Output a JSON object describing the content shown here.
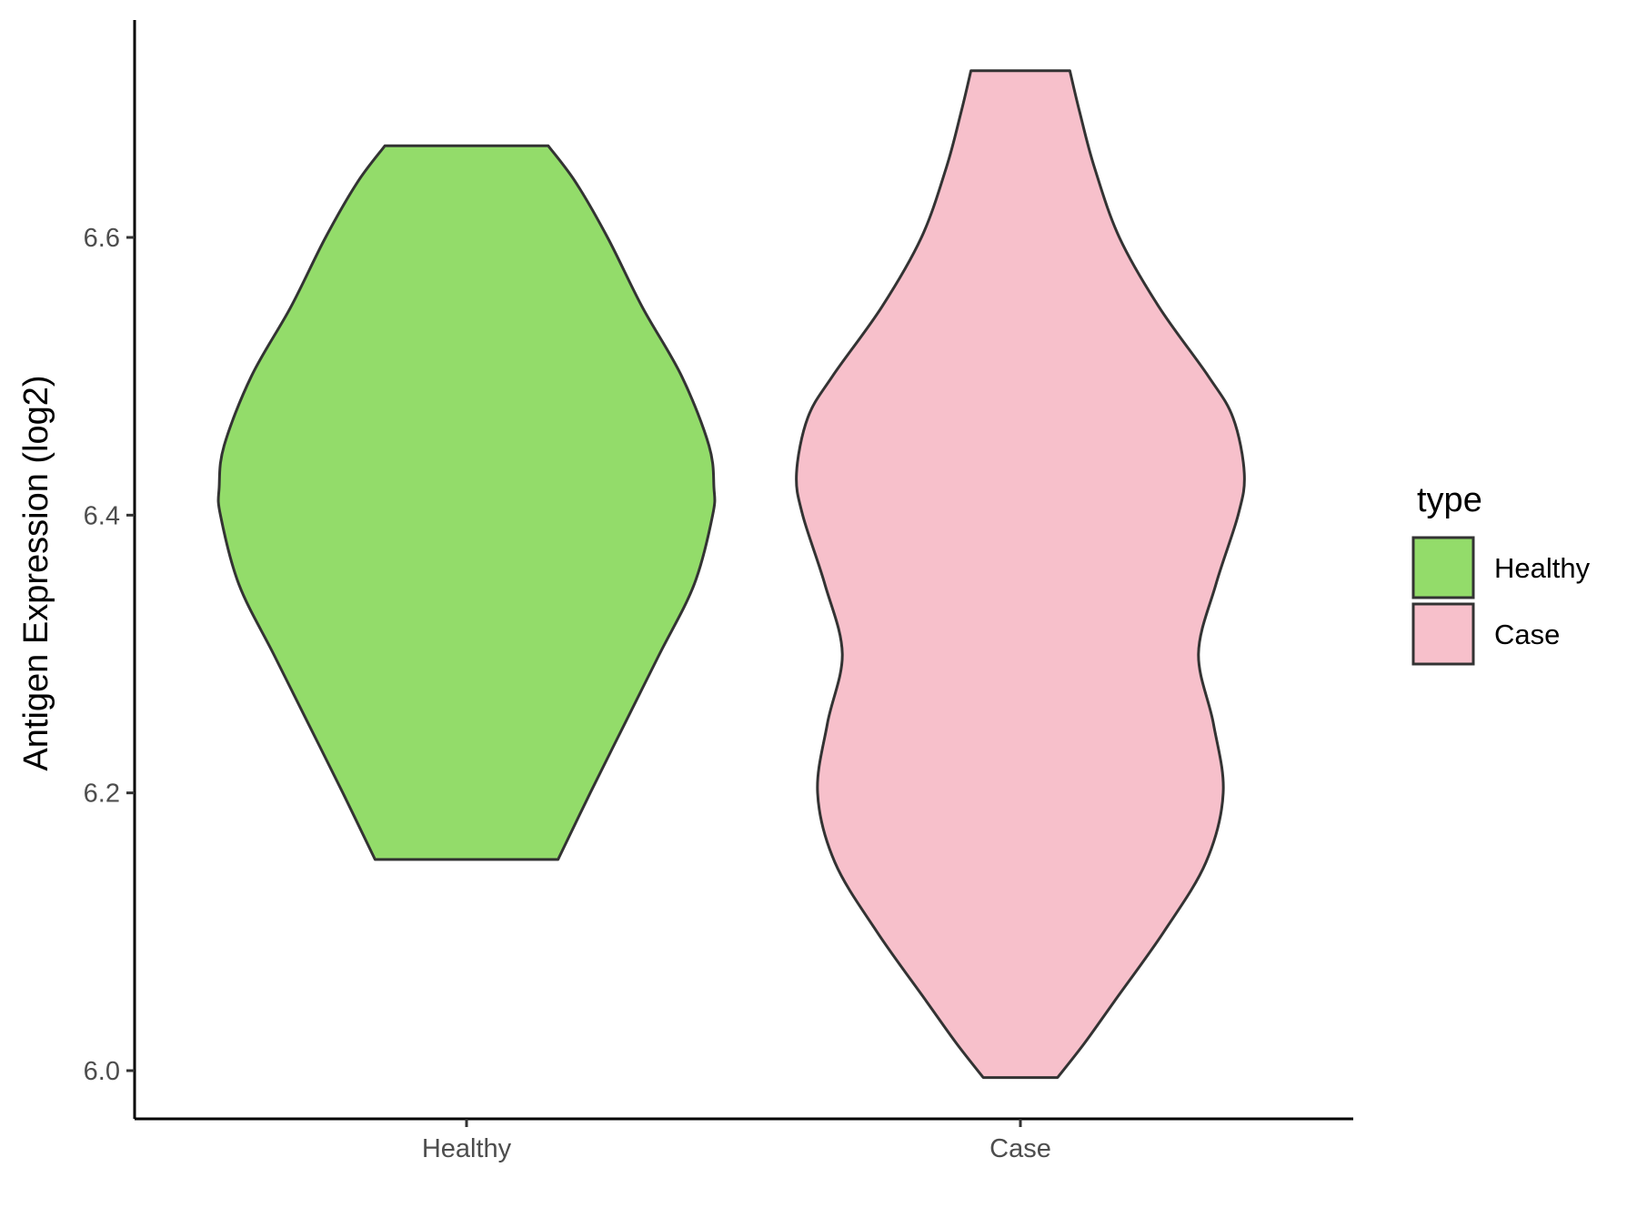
{
  "chart_data": {
    "type": "violin",
    "ylabel": "Antigen Expression (log2)",
    "xlabel": "",
    "ylim": [
      5.96,
      6.755
    ],
    "y_ticks": [
      "6.0",
      "6.2",
      "6.4",
      "6.6"
    ],
    "categories": [
      "Healthy",
      "Case"
    ],
    "legend": {
      "title": "type",
      "position": "right",
      "items": [
        {
          "label": "Healthy",
          "color": "#93dc6a"
        },
        {
          "label": "Case",
          "color": "#f7c0cb"
        }
      ]
    },
    "series": [
      {
        "name": "Healthy",
        "color": "#93dc6a",
        "min": 6.152,
        "max": 6.666,
        "density_profile": [
          [
            6.152,
            0.37
          ],
          [
            6.2,
            0.5
          ],
          [
            6.25,
            0.64
          ],
          [
            6.3,
            0.78
          ],
          [
            6.35,
            0.92
          ],
          [
            6.4,
            0.995
          ],
          [
            6.42,
            1.0
          ],
          [
            6.45,
            0.98
          ],
          [
            6.5,
            0.87
          ],
          [
            6.55,
            0.71
          ],
          [
            6.6,
            0.57
          ],
          [
            6.64,
            0.44
          ],
          [
            6.666,
            0.33
          ]
        ]
      },
      {
        "name": "Case",
        "color": "#f7c0cb",
        "min": 5.995,
        "max": 6.72,
        "density_profile": [
          [
            5.995,
            0.15
          ],
          [
            6.02,
            0.26
          ],
          [
            6.05,
            0.38
          ],
          [
            6.1,
            0.58
          ],
          [
            6.15,
            0.75
          ],
          [
            6.2,
            0.82
          ],
          [
            6.25,
            0.78
          ],
          [
            6.3,
            0.72
          ],
          [
            6.35,
            0.79
          ],
          [
            6.4,
            0.88
          ],
          [
            6.43,
            0.905
          ],
          [
            6.47,
            0.86
          ],
          [
            6.5,
            0.76
          ],
          [
            6.55,
            0.56
          ],
          [
            6.6,
            0.4
          ],
          [
            6.65,
            0.3
          ],
          [
            6.69,
            0.24
          ],
          [
            6.72,
            0.2
          ]
        ]
      }
    ]
  }
}
